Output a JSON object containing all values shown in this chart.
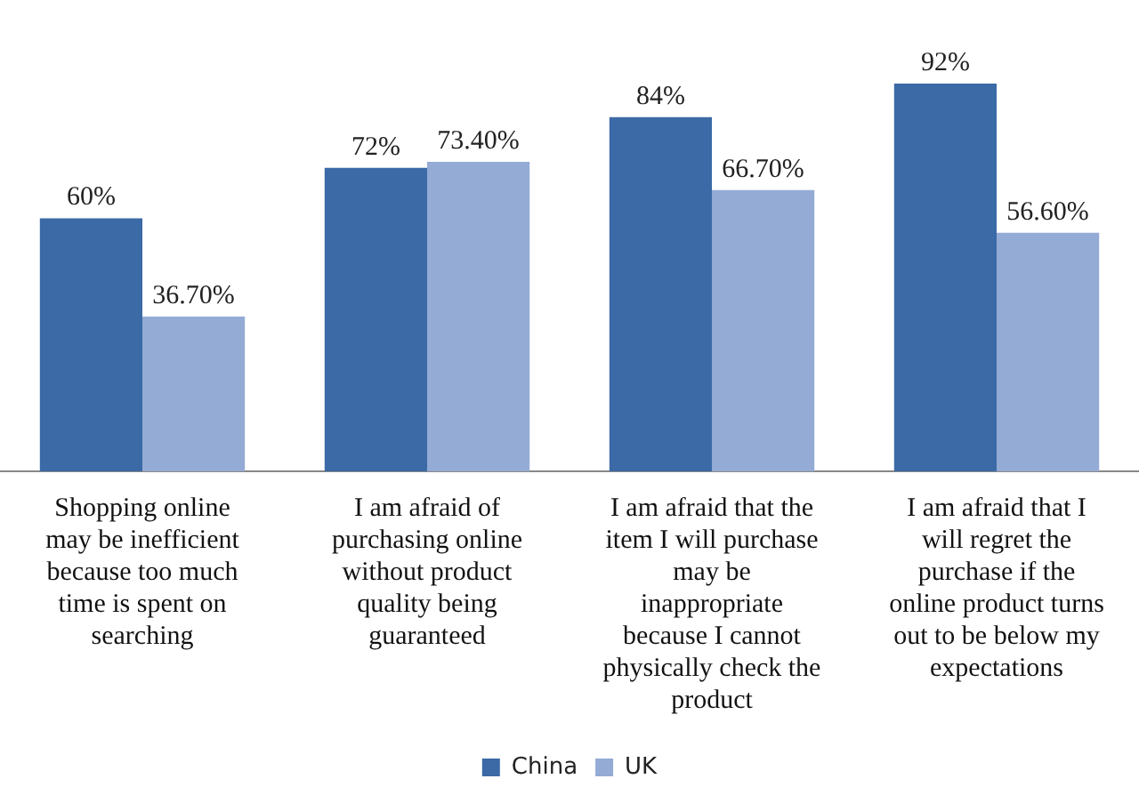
{
  "chart_data": {
    "type": "bar",
    "categories": [
      "Shopping online may be inefficient because too much time is spent on searching",
      "I am afraid of purchasing online without product quality being guaranteed",
      "I am afraid that the item I will purchase may be inappropriate because I cannot physically check the product",
      "I am afraid that I will regret the purchase if the online product turns out to be below my expectations"
    ],
    "series": [
      {
        "name": "China",
        "color": "#3b6aa6",
        "values": [
          60,
          72,
          84,
          92
        ],
        "value_labels": [
          "60%",
          "72%",
          "84%",
          "92%"
        ]
      },
      {
        "name": "UK",
        "color": "#93abd5",
        "values": [
          36.7,
          73.4,
          66.7,
          56.6
        ],
        "value_labels": [
          "36.70%",
          "73.40%",
          "66.70%",
          "56.60%"
        ]
      }
    ],
    "grid": false,
    "legend": "bottom"
  }
}
